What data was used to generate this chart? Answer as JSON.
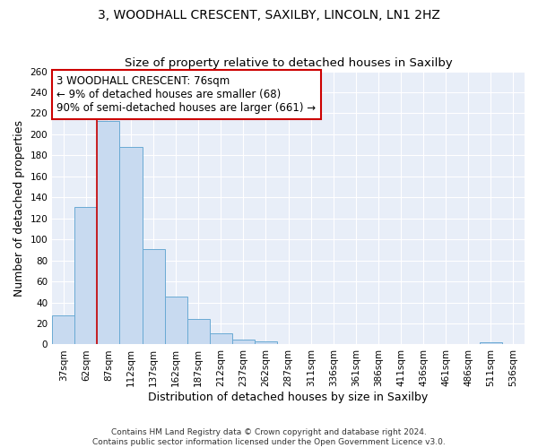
{
  "title1": "3, WOODHALL CRESCENT, SAXILBY, LINCOLN, LN1 2HZ",
  "title2": "Size of property relative to detached houses in Saxilby",
  "xlabel": "Distribution of detached houses by size in Saxilby",
  "ylabel": "Number of detached properties",
  "categories": [
    "37sqm",
    "62sqm",
    "87sqm",
    "112sqm",
    "137sqm",
    "162sqm",
    "187sqm",
    "212sqm",
    "237sqm",
    "262sqm",
    "287sqm",
    "311sqm",
    "336sqm",
    "361sqm",
    "386sqm",
    "411sqm",
    "436sqm",
    "461sqm",
    "486sqm",
    "511sqm",
    "536sqm"
  ],
  "values": [
    28,
    131,
    213,
    188,
    91,
    46,
    24,
    11,
    5,
    3,
    0,
    0,
    0,
    0,
    0,
    0,
    0,
    0,
    0,
    2,
    0
  ],
  "bar_color": "#c8daf0",
  "bar_edge_color": "#6aaad4",
  "background_color": "#e8eef8",
  "grid_color": "#ffffff",
  "annotation_box_text": "3 WOODHALL CRESCENT: 76sqm\n← 9% of detached houses are smaller (68)\n90% of semi-detached houses are larger (661) →",
  "annotation_box_color": "#ffffff",
  "annotation_box_edge_color": "#cc0000",
  "red_line_x": 1.5,
  "ylim": [
    0,
    260
  ],
  "yticks": [
    0,
    20,
    40,
    60,
    80,
    100,
    120,
    140,
    160,
    180,
    200,
    220,
    240,
    260
  ],
  "footnote": "Contains HM Land Registry data © Crown copyright and database right 2024.\nContains public sector information licensed under the Open Government Licence v3.0.",
  "title_fontsize": 10,
  "subtitle_fontsize": 9.5,
  "axis_label_fontsize": 9,
  "tick_fontsize": 7.5,
  "annotation_fontsize": 8.5,
  "footnote_fontsize": 6.5
}
